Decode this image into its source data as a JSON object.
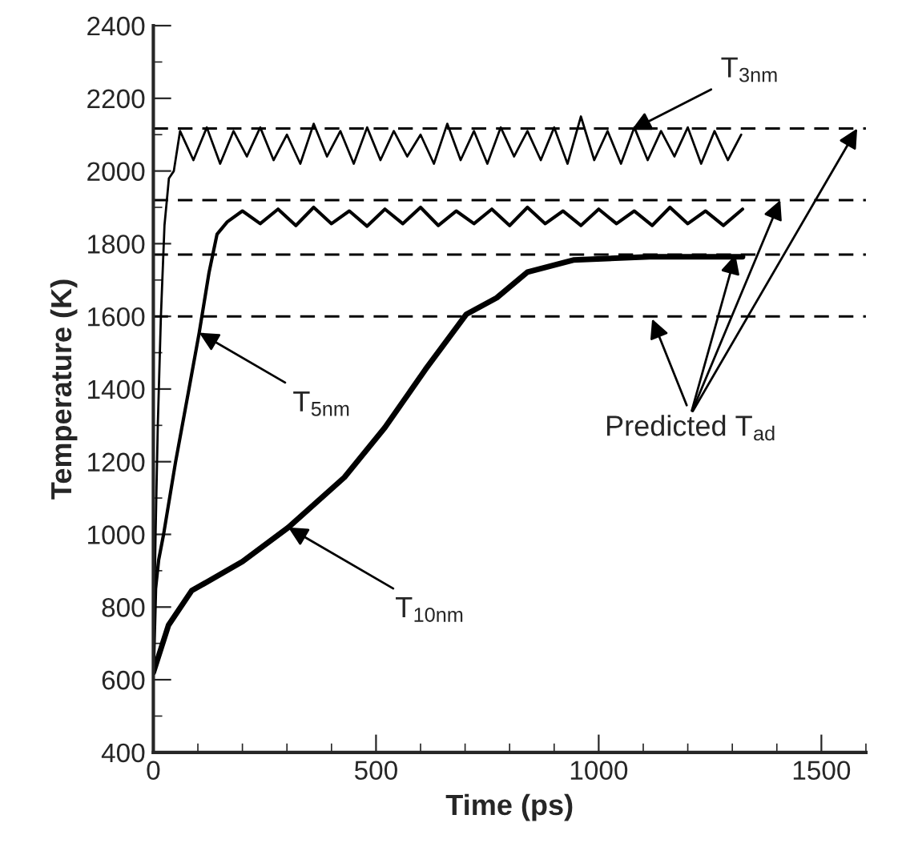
{
  "chart_data": {
    "type": "line",
    "xlabel": "Time (ps)",
    "ylabel": "Temperature (K)",
    "xlim": [
      0,
      1600
    ],
    "xticks": [
      0,
      500,
      1000,
      1500
    ],
    "ylim": [
      400,
      2400
    ],
    "yticks": [
      400,
      600,
      800,
      1000,
      1200,
      1400,
      1600,
      1800,
      2000,
      2200,
      2400
    ],
    "grid": false,
    "legend": false,
    "marker": "none",
    "line_style": "solid",
    "series": [
      {
        "color": "#000000",
        "x": [
          0,
          5,
          10,
          17,
          25,
          35,
          46,
          60,
          90,
          120,
          150,
          180,
          210,
          240,
          270,
          300,
          330,
          360,
          390,
          420,
          450,
          480,
          510,
          540,
          570,
          600,
          630,
          660,
          690,
          720,
          750,
          780,
          810,
          840,
          870,
          900,
          930,
          960,
          990,
          1020,
          1050,
          1080,
          1110,
          1140,
          1170,
          1200,
          1230,
          1260,
          1290,
          1320
        ],
        "values": [
          620,
          1000,
          1300,
          1600,
          1850,
          1980,
          2000,
          2110,
          2030,
          2120,
          2020,
          2110,
          2040,
          2120,
          2030,
          2100,
          2020,
          2130,
          2040,
          2110,
          2020,
          2120,
          2030,
          2110,
          2040,
          2100,
          2020,
          2130,
          2030,
          2110,
          2020,
          2120,
          2040,
          2110,
          2030,
          2120,
          2020,
          2150,
          2030,
          2110,
          2020,
          2120,
          2030,
          2110,
          2040,
          2120,
          2020,
          2110,
          2030,
          2100
        ]
      },
      {
        "color": "#000000",
        "x": [
          0,
          5,
          12,
          23,
          50,
          80,
          103,
          125,
          143,
          166,
          200,
          240,
          280,
          320,
          360,
          400,
          440,
          480,
          520,
          560,
          600,
          640,
          680,
          720,
          760,
          800,
          840,
          880,
          920,
          960,
          1000,
          1040,
          1080,
          1120,
          1160,
          1200,
          1240,
          1280,
          1323
        ],
        "values": [
          620,
          850,
          930,
          1000,
          1200,
          1400,
          1555,
          1720,
          1826,
          1860,
          1890,
          1855,
          1895,
          1850,
          1900,
          1855,
          1890,
          1848,
          1895,
          1855,
          1900,
          1850,
          1890,
          1855,
          1895,
          1850,
          1900,
          1855,
          1890,
          1850,
          1895,
          1855,
          1890,
          1850,
          1900,
          1855,
          1890,
          1850,
          1895
        ]
      },
      {
        "color": "#000000",
        "x": [
          0,
          34,
          86,
          200,
          303,
          429,
          520,
          611,
          703,
          771,
          840,
          943,
          1114,
          1323
        ],
        "values": [
          620,
          750,
          845,
          925,
          1019,
          1157,
          1294,
          1454,
          1606,
          1651,
          1722,
          1755,
          1764,
          1764
        ]
      }
    ],
    "ref_lines": [
      {
        "axis": "y",
        "value": 1600,
        "color": "#000000",
        "line_style": "dashed"
      },
      {
        "axis": "y",
        "value": 1770,
        "color": "#000000",
        "line_style": "dashed"
      },
      {
        "axis": "y",
        "value": 1920,
        "color": "#000000",
        "line_style": "dashed"
      },
      {
        "axis": "y",
        "value": 2117,
        "color": "#000000",
        "line_style": "dashed"
      }
    ],
    "annotations": [
      {
        "text": "T$_{3nm}$",
        "x": 1074,
        "y": 2113
      },
      {
        "text": "T$_{5nm}$",
        "x": 103,
        "y": 1555
      },
      {
        "text": "T$_{10nm}$",
        "x": 303,
        "y": 1019
      },
      {
        "text": "Predicted T$_{ad}$",
        "x": 1120,
        "y": 1593
      }
    ]
  }
}
